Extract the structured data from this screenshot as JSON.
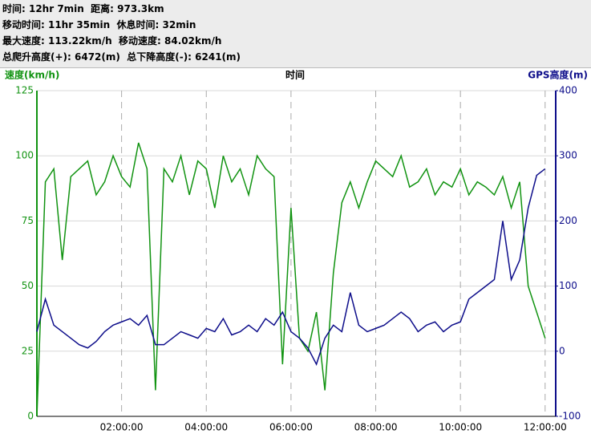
{
  "stats": [
    "时间: 12hr 7min  距离: 973.3km",
    "移动时间: 11hr 35min  休息时间: 32min",
    "最大速度: 113.22km/h  移动速度: 84.02km/h",
    "总爬升高度(+): 6472(m)  总下降高度(-): 6241(m)"
  ],
  "chart_data": {
    "type": "line",
    "xlabel": "时间",
    "ylabel": "速度(km/h)",
    "y2label": "GPS高度(m)",
    "x": [
      0,
      0.2,
      0.4,
      0.6,
      0.8,
      1.0,
      1.2,
      1.4,
      1.6,
      1.8,
      2.0,
      2.2,
      2.4,
      2.6,
      2.8,
      3.0,
      3.2,
      3.4,
      3.6,
      3.8,
      4.0,
      4.2,
      4.4,
      4.6,
      4.8,
      5.0,
      5.2,
      5.4,
      5.6,
      5.8,
      6.0,
      6.2,
      6.4,
      6.6,
      6.8,
      7.0,
      7.2,
      7.4,
      7.6,
      7.8,
      8.0,
      8.2,
      8.4,
      8.6,
      8.8,
      9.0,
      9.2,
      9.4,
      9.6,
      9.8,
      10.0,
      10.2,
      10.4,
      10.6,
      10.8,
      11.0,
      11.2,
      11.4,
      11.6,
      11.8,
      12.0
    ],
    "xlim": [
      0,
      12.25
    ],
    "xticks": [
      {
        "value": 2,
        "label": "02:00:00"
      },
      {
        "value": 4,
        "label": "04:00:00"
      },
      {
        "value": 6,
        "label": "06:00:00"
      },
      {
        "value": 8,
        "label": "08:00:00"
      },
      {
        "value": 10,
        "label": "10:00:00"
      },
      {
        "value": 12,
        "label": "12:00:00"
      }
    ],
    "ylim": [
      0,
      125
    ],
    "yticks": [
      0,
      25,
      50,
      75,
      100,
      125
    ],
    "y2lim": [
      -100,
      400
    ],
    "y2ticks": [
      -100,
      0,
      100,
      200,
      300,
      400
    ],
    "grid": true,
    "series": [
      {
        "name": "速度",
        "color": "#119311",
        "values": [
          0,
          90,
          95,
          60,
          92,
          95,
          98,
          85,
          90,
          100,
          92,
          88,
          105,
          95,
          10,
          95,
          90,
          100,
          85,
          98,
          95,
          80,
          100,
          90,
          95,
          85,
          100,
          95,
          92,
          20,
          80,
          30,
          25,
          40,
          10,
          55,
          82,
          90,
          80,
          90,
          98,
          95,
          92,
          100,
          88,
          90,
          95,
          85,
          90,
          88,
          95,
          85,
          90,
          88,
          85,
          92,
          80,
          90,
          50,
          40,
          30
        ]
      },
      {
        "name": "GPS高度",
        "color": "#0d0d8a",
        "axis": "y2",
        "values": [
          30,
          80,
          40,
          30,
          20,
          10,
          5,
          15,
          30,
          40,
          45,
          50,
          40,
          55,
          10,
          10,
          20,
          30,
          25,
          20,
          35,
          30,
          50,
          25,
          30,
          40,
          30,
          50,
          40,
          60,
          30,
          20,
          5,
          -20,
          20,
          40,
          30,
          90,
          40,
          30,
          35,
          40,
          50,
          60,
          50,
          30,
          40,
          45,
          30,
          40,
          45,
          80,
          90,
          100,
          110,
          200,
          110,
          140,
          220,
          270,
          280
        ]
      }
    ]
  }
}
